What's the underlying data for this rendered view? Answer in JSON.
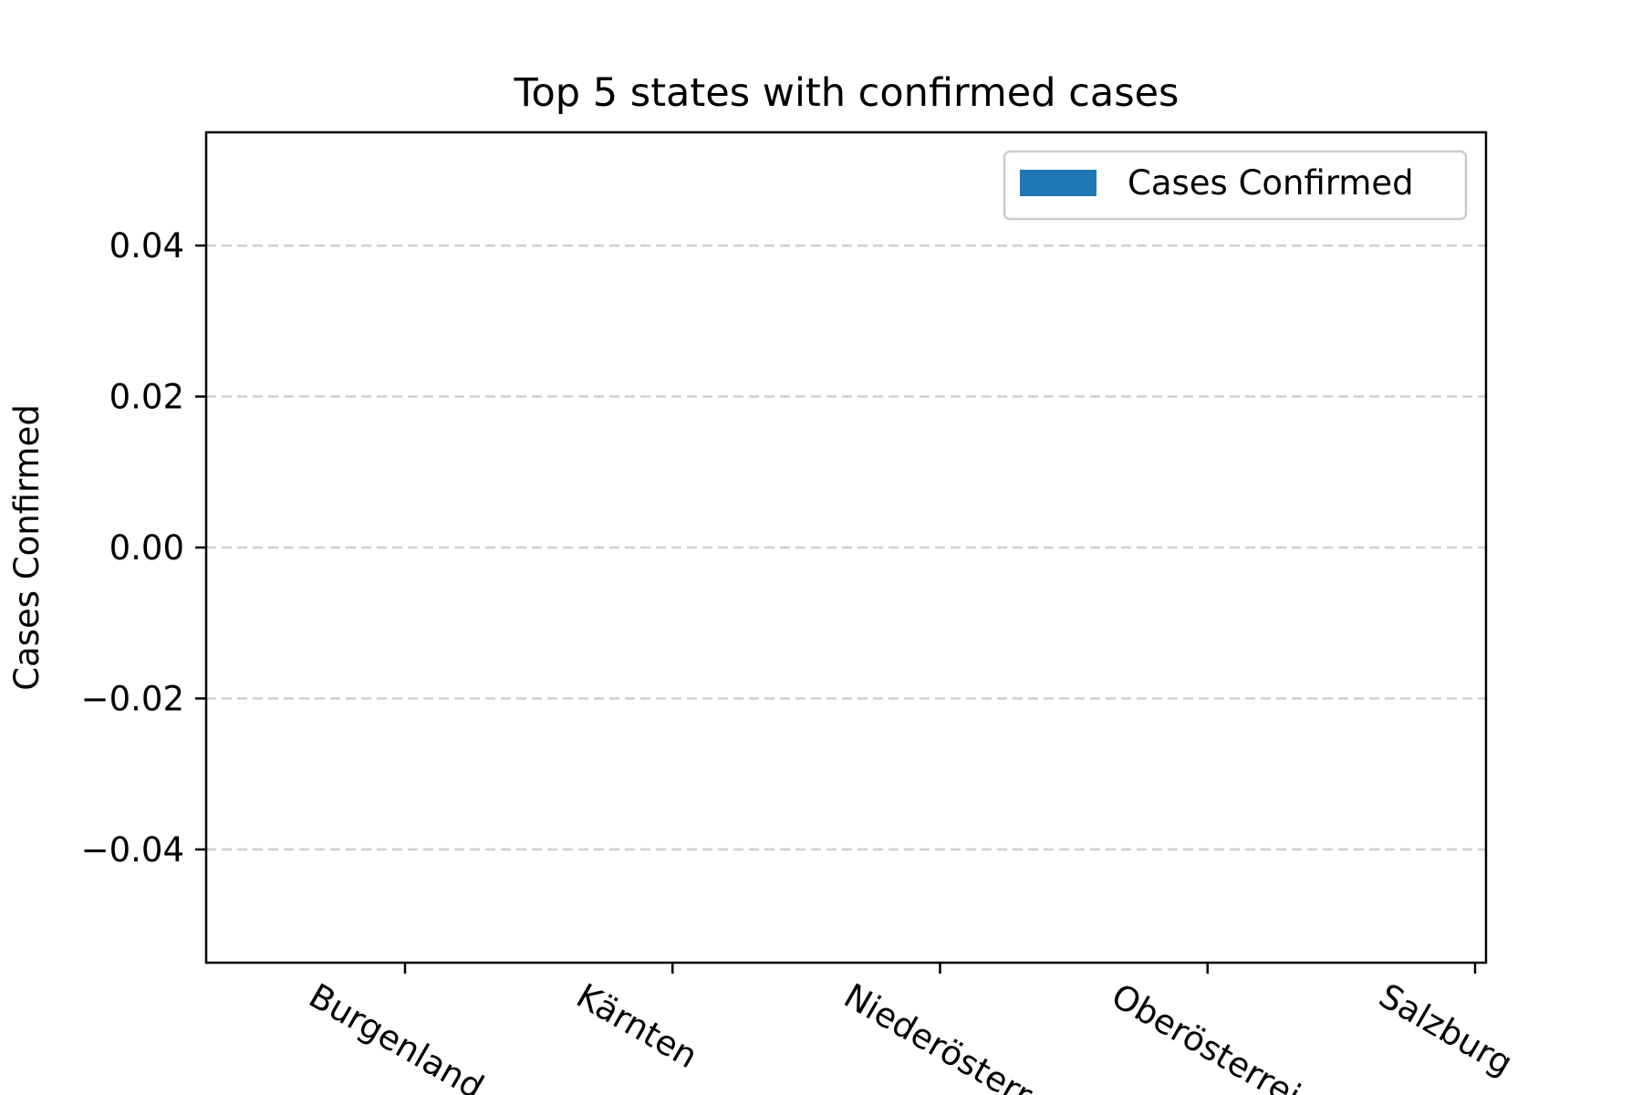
{
  "chart_data": {
    "type": "bar",
    "title": "Top 5 states with confirmed cases",
    "xlabel": "",
    "ylabel": "Cases Confirmed",
    "categories": [
      "Burgenland",
      "Kärnten",
      "Niederösterreich",
      "Oberösterreich",
      "Salzburg"
    ],
    "series": [
      {
        "name": "Cases Confirmed",
        "values": [
          0,
          0,
          0,
          0,
          0
        ],
        "color": "#1f77b4"
      }
    ],
    "ylim": [
      -0.055,
      0.055
    ],
    "yticks": [
      {
        "value": -0.04,
        "label": "−0.04"
      },
      {
        "value": -0.02,
        "label": "−0.02"
      },
      {
        "value": 0.0,
        "label": "0.00"
      },
      {
        "value": 0.02,
        "label": "0.02"
      },
      {
        "value": 0.04,
        "label": "0.04"
      }
    ],
    "grid": {
      "axis": "y",
      "style": "dashed",
      "color": "#c8d3d0"
    },
    "legend_placement": "top-right"
  }
}
